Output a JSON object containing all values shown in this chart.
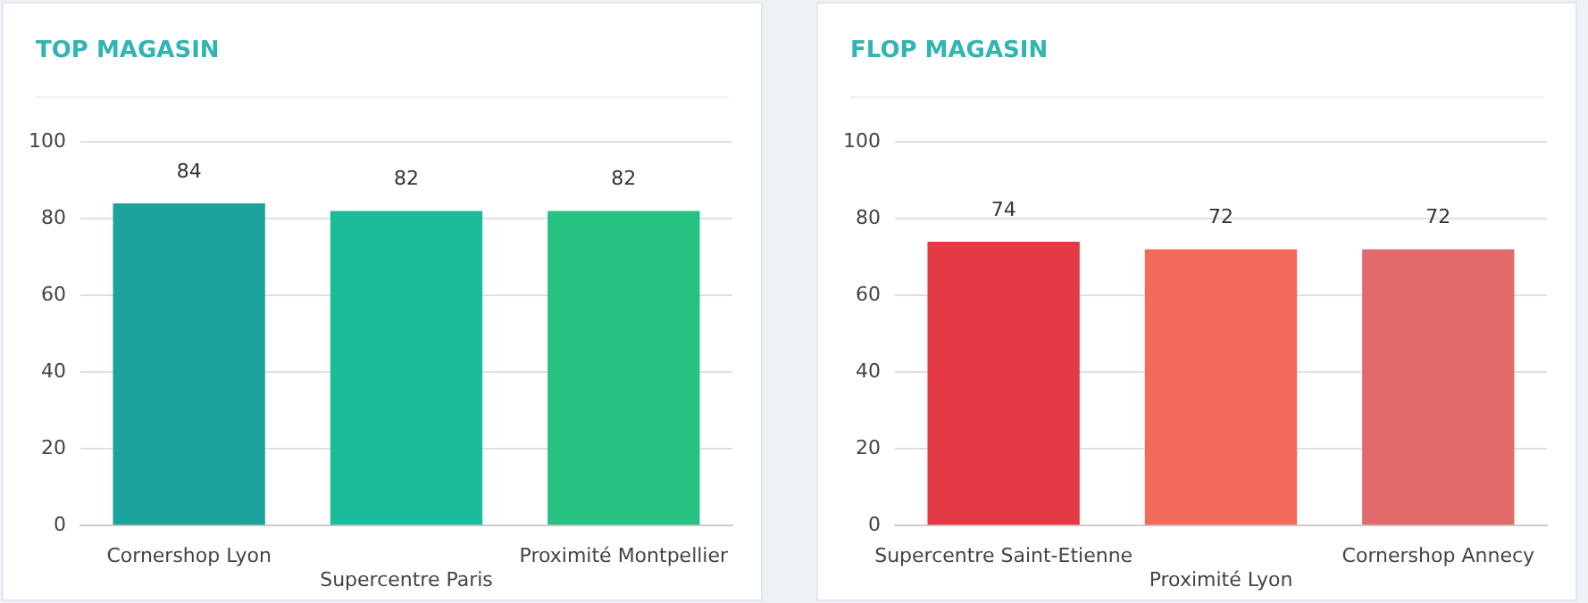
{
  "chart_data": [
    {
      "type": "bar",
      "title": "TOP MAGASIN",
      "categories": [
        "Cornershop Lyon",
        "Supercentre Paris",
        "Proximité Montpellier"
      ],
      "values": [
        84,
        82,
        82
      ],
      "colors": [
        "#1ba39c",
        "#1abc9c",
        "#26c281"
      ],
      "ylim": [
        0,
        100
      ],
      "yticks": [
        0,
        20,
        40,
        60,
        80,
        100
      ],
      "grid": "y",
      "data_labels": true
    },
    {
      "type": "bar",
      "title": "FLOP MAGASIN",
      "categories": [
        "Supercentre Saint-Etienne",
        "Proximité Lyon",
        "Cornershop Annecy"
      ],
      "values": [
        74,
        72,
        72
      ],
      "colors": [
        "#e43a45",
        "#f3695a",
        "#e26a6a"
      ],
      "ylim": [
        0,
        100
      ],
      "yticks": [
        0,
        20,
        40,
        60,
        80,
        100
      ],
      "grid": "y",
      "data_labels": true
    }
  ]
}
